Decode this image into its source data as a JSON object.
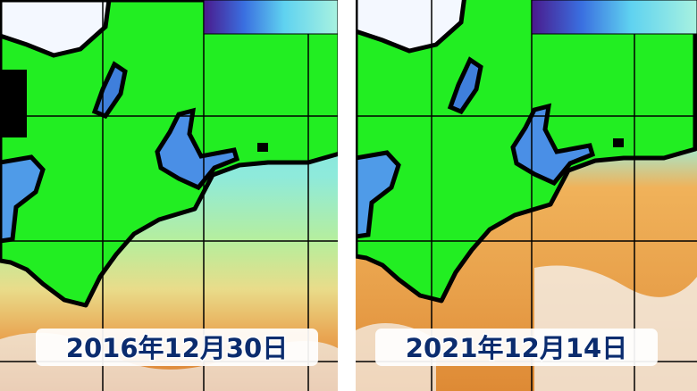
{
  "panels": [
    {
      "date": "2016年12月30日"
    },
    {
      "date": "2021年12月14日"
    }
  ]
}
